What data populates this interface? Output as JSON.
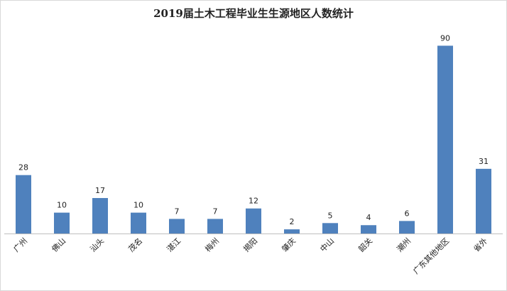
{
  "chart_data": {
    "type": "bar",
    "title": "2019届土木工程毕业生生源地区人数统计",
    "categories": [
      "广州",
      "佛山",
      "汕头",
      "茂名",
      "湛江",
      "梅州",
      "揭阳",
      "肇庆",
      "中山",
      "韶关",
      "潮州",
      "广东其他地区",
      "省外"
    ],
    "values": [
      28,
      10,
      17,
      10,
      7,
      7,
      12,
      2,
      5,
      4,
      6,
      90,
      31
    ],
    "color": "#4f81bd",
    "ylim": [
      0,
      100
    ]
  }
}
